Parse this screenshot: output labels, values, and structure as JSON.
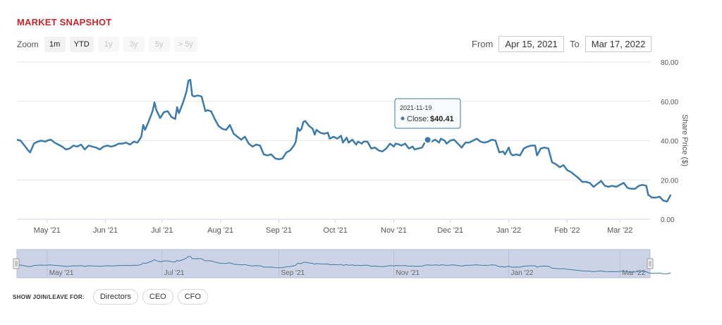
{
  "header": {
    "title": "MARKET SNAPSHOT"
  },
  "zoom": {
    "label": "Zoom",
    "buttons": [
      {
        "label": "1m",
        "enabled": true
      },
      {
        "label": "YTD",
        "enabled": true
      },
      {
        "label": "1y",
        "enabled": false
      },
      {
        "label": "3y",
        "enabled": false
      },
      {
        "label": "5y",
        "enabled": false
      },
      {
        "label": "> 5y",
        "enabled": false
      }
    ]
  },
  "range": {
    "from_label": "From",
    "from_value": "Apr 15, 2021",
    "to_label": "To",
    "to_value": "Mar 17, 2022"
  },
  "tooltip": {
    "date": "2021-11-19",
    "series": "Close:",
    "value": "$40.41"
  },
  "join": {
    "label": "SHOW JOIN/LEAVE FOR:",
    "buttons": [
      "Directors",
      "CEO",
      "CFO"
    ]
  },
  "colors": {
    "line": "#3d7aa5",
    "title": "#c1272d",
    "navigator_fill": "#ccd3e6"
  },
  "chart_data": {
    "type": "line",
    "ylabel": "Share Price ($)",
    "ylim": [
      0,
      80
    ],
    "yticks": [
      "0.00",
      "20.00",
      "40.00",
      "60.00",
      "80.00"
    ],
    "xlim": [
      "2021-04-15",
      "2022-03-17"
    ],
    "xticks": [
      {
        "date": "2021-05-01",
        "label": "May '21"
      },
      {
        "date": "2021-06-01",
        "label": "Jun '21"
      },
      {
        "date": "2021-07-01",
        "label": "Jul '21"
      },
      {
        "date": "2021-08-01",
        "label": "Aug '21"
      },
      {
        "date": "2021-09-01",
        "label": "Sep '21"
      },
      {
        "date": "2021-10-01",
        "label": "Oct '21"
      },
      {
        "date": "2021-11-01",
        "label": "Nov '21"
      },
      {
        "date": "2021-12-01",
        "label": "Dec '21"
      },
      {
        "date": "2022-01-01",
        "label": "Jan '22"
      },
      {
        "date": "2022-02-01",
        "label": "Feb '22"
      },
      {
        "date": "2022-03-01",
        "label": "Mar '22"
      }
    ],
    "navigator_ticks": [
      "May '21",
      "Jul '21",
      "Sep '21",
      "Nov '21",
      "Jan '22",
      "Mar '22"
    ],
    "grid": true,
    "highlight": {
      "date": "2021-11-19",
      "value": 40.41
    },
    "series": [
      {
        "points": [
          [
            "2021-04-15",
            40.5
          ],
          [
            "2021-04-17",
            40.0
          ],
          [
            "2021-04-19",
            37.5
          ],
          [
            "2021-04-21",
            35.0
          ],
          [
            "2021-04-22",
            34.0
          ],
          [
            "2021-04-24",
            38.5
          ],
          [
            "2021-04-26",
            39.5
          ],
          [
            "2021-04-28",
            40.0
          ],
          [
            "2021-04-30",
            39.5
          ],
          [
            "2021-05-01",
            40.0
          ],
          [
            "2021-05-03",
            40.5
          ],
          [
            "2021-05-05",
            39.0
          ],
          [
            "2021-05-07",
            38.0
          ],
          [
            "2021-05-09",
            37.0
          ],
          [
            "2021-05-11",
            35.5
          ],
          [
            "2021-05-13",
            36.0
          ],
          [
            "2021-05-15",
            37.5
          ],
          [
            "2021-05-17",
            37.0
          ],
          [
            "2021-05-19",
            38.0
          ],
          [
            "2021-05-21",
            35.5
          ],
          [
            "2021-05-23",
            37.5
          ],
          [
            "2021-05-25",
            37.0
          ],
          [
            "2021-05-27",
            36.5
          ],
          [
            "2021-05-29",
            35.5
          ],
          [
            "2021-05-31",
            37.0
          ],
          [
            "2021-06-02",
            37.5
          ],
          [
            "2021-06-04",
            37.0
          ],
          [
            "2021-06-06",
            37.5
          ],
          [
            "2021-06-08",
            38.5
          ],
          [
            "2021-06-10",
            38.5
          ],
          [
            "2021-06-12",
            39.0
          ],
          [
            "2021-06-14",
            38.0
          ],
          [
            "2021-06-16",
            39.5
          ],
          [
            "2021-06-18",
            39.0
          ],
          [
            "2021-06-20",
            42.0
          ],
          [
            "2021-06-21",
            48.0
          ],
          [
            "2021-06-22",
            45.5
          ],
          [
            "2021-06-24",
            50.0
          ],
          [
            "2021-06-26",
            55.0
          ],
          [
            "2021-06-27",
            59.5
          ],
          [
            "2021-06-28",
            55.5
          ],
          [
            "2021-06-30",
            51.5
          ],
          [
            "2021-07-02",
            54.5
          ],
          [
            "2021-07-04",
            55.0
          ],
          [
            "2021-07-06",
            52.0
          ],
          [
            "2021-07-08",
            51.0
          ],
          [
            "2021-07-09",
            57.0
          ],
          [
            "2021-07-10",
            54.0
          ],
          [
            "2021-07-12",
            59.0
          ],
          [
            "2021-07-13",
            62.0
          ],
          [
            "2021-07-14",
            65.0
          ],
          [
            "2021-07-15",
            70.5
          ],
          [
            "2021-07-16",
            71.0
          ],
          [
            "2021-07-17",
            63.0
          ],
          [
            "2021-07-18",
            62.5
          ],
          [
            "2021-07-20",
            63.0
          ],
          [
            "2021-07-22",
            62.5
          ],
          [
            "2021-07-24",
            55.0
          ],
          [
            "2021-07-25",
            55.5
          ],
          [
            "2021-07-27",
            55.0
          ],
          [
            "2021-07-29",
            51.0
          ],
          [
            "2021-07-31",
            47.5
          ],
          [
            "2021-08-02",
            46.0
          ],
          [
            "2021-08-04",
            45.5
          ],
          [
            "2021-08-06",
            48.0
          ],
          [
            "2021-08-08",
            43.5
          ],
          [
            "2021-08-10",
            42.0
          ],
          [
            "2021-08-12",
            40.5
          ],
          [
            "2021-08-14",
            42.0
          ],
          [
            "2021-08-16",
            38.5
          ],
          [
            "2021-08-18",
            37.0
          ],
          [
            "2021-08-20",
            38.0
          ],
          [
            "2021-08-22",
            37.5
          ],
          [
            "2021-08-24",
            33.0
          ],
          [
            "2021-08-26",
            32.5
          ],
          [
            "2021-08-28",
            33.0
          ],
          [
            "2021-08-30",
            31.0
          ],
          [
            "2021-09-01",
            30.5
          ],
          [
            "2021-09-03",
            31.0
          ],
          [
            "2021-09-05",
            34.0
          ],
          [
            "2021-09-07",
            35.0
          ],
          [
            "2021-09-09",
            37.5
          ],
          [
            "2021-09-10",
            39.5
          ],
          [
            "2021-09-11",
            46.5
          ],
          [
            "2021-09-12",
            45.0
          ],
          [
            "2021-09-13",
            46.0
          ],
          [
            "2021-09-14",
            49.5
          ],
          [
            "2021-09-15",
            50.0
          ],
          [
            "2021-09-17",
            47.5
          ],
          [
            "2021-09-19",
            46.0
          ],
          [
            "2021-09-20",
            43.0
          ],
          [
            "2021-09-21",
            45.5
          ],
          [
            "2021-09-23",
            44.0
          ],
          [
            "2021-09-25",
            43.5
          ],
          [
            "2021-09-27",
            44.0
          ],
          [
            "2021-09-28",
            41.0
          ],
          [
            "2021-09-30",
            42.0
          ],
          [
            "2021-10-02",
            41.0
          ],
          [
            "2021-10-04",
            42.5
          ],
          [
            "2021-10-05",
            39.0
          ],
          [
            "2021-10-07",
            41.5
          ],
          [
            "2021-10-08",
            39.0
          ],
          [
            "2021-10-10",
            40.5
          ],
          [
            "2021-10-12",
            38.0
          ],
          [
            "2021-10-13",
            39.5
          ],
          [
            "2021-10-15",
            38.5
          ],
          [
            "2021-10-16",
            39.5
          ],
          [
            "2021-10-18",
            39.5
          ],
          [
            "2021-10-20",
            36.0
          ],
          [
            "2021-10-22",
            36.5
          ],
          [
            "2021-10-24",
            35.0
          ],
          [
            "2021-10-26",
            34.5
          ],
          [
            "2021-10-28",
            36.0
          ],
          [
            "2021-10-30",
            38.5
          ],
          [
            "2021-11-01",
            37.0
          ],
          [
            "2021-11-02",
            38.5
          ],
          [
            "2021-11-04",
            38.0
          ],
          [
            "2021-11-05",
            37.5
          ],
          [
            "2021-11-07",
            38.5
          ],
          [
            "2021-11-09",
            36.0
          ],
          [
            "2021-11-11",
            37.0
          ],
          [
            "2021-11-12",
            35.5
          ],
          [
            "2021-11-14",
            36.0
          ],
          [
            "2021-11-16",
            36.5
          ],
          [
            "2021-11-18",
            40.0
          ],
          [
            "2021-11-19",
            40.41
          ],
          [
            "2021-11-21",
            39.5
          ],
          [
            "2021-11-23",
            40.5
          ],
          [
            "2021-11-25",
            39.0
          ],
          [
            "2021-11-26",
            41.0
          ],
          [
            "2021-11-28",
            40.0
          ],
          [
            "2021-11-29",
            38.5
          ],
          [
            "2021-12-01",
            40.0
          ],
          [
            "2021-12-03",
            40.5
          ],
          [
            "2021-12-05",
            38.5
          ],
          [
            "2021-12-07",
            36.5
          ],
          [
            "2021-12-09",
            39.0
          ],
          [
            "2021-12-11",
            39.0
          ],
          [
            "2021-12-13",
            40.0
          ],
          [
            "2021-12-15",
            41.0
          ],
          [
            "2021-12-17",
            39.5
          ],
          [
            "2021-12-19",
            39.0
          ],
          [
            "2021-12-21",
            39.5
          ],
          [
            "2021-12-23",
            40.5
          ],
          [
            "2021-12-25",
            40.0
          ],
          [
            "2021-12-27",
            34.0
          ],
          [
            "2021-12-29",
            34.5
          ],
          [
            "2021-12-30",
            33.0
          ],
          [
            "2022-01-01",
            36.5
          ],
          [
            "2022-01-02",
            33.5
          ],
          [
            "2022-01-03",
            32.5
          ],
          [
            "2022-01-05",
            33.0
          ],
          [
            "2022-01-07",
            32.5
          ],
          [
            "2022-01-09",
            36.0
          ],
          [
            "2022-01-11",
            37.0
          ],
          [
            "2022-01-13",
            37.5
          ],
          [
            "2022-01-15",
            37.5
          ],
          [
            "2022-01-16",
            32.5
          ],
          [
            "2022-01-18",
            36.0
          ],
          [
            "2022-01-20",
            36.5
          ],
          [
            "2022-01-22",
            36.0
          ],
          [
            "2022-01-24",
            29.0
          ],
          [
            "2022-01-26",
            28.0
          ],
          [
            "2022-01-28",
            26.5
          ],
          [
            "2022-01-30",
            27.5
          ],
          [
            "2022-02-01",
            25.0
          ],
          [
            "2022-02-03",
            24.0
          ],
          [
            "2022-02-05",
            22.5
          ],
          [
            "2022-02-07",
            21.0
          ],
          [
            "2022-02-09",
            19.0
          ],
          [
            "2022-02-11",
            19.0
          ],
          [
            "2022-02-13",
            18.5
          ],
          [
            "2022-02-15",
            16.5
          ],
          [
            "2022-02-17",
            18.0
          ],
          [
            "2022-02-19",
            19.5
          ],
          [
            "2022-02-21",
            17.0
          ],
          [
            "2022-02-23",
            16.5
          ],
          [
            "2022-02-25",
            17.0
          ],
          [
            "2022-02-27",
            16.5
          ],
          [
            "2022-03-01",
            17.5
          ],
          [
            "2022-03-03",
            18.5
          ],
          [
            "2022-03-05",
            16.0
          ],
          [
            "2022-03-07",
            15.5
          ],
          [
            "2022-03-09",
            15.5
          ],
          [
            "2022-03-11",
            17.0
          ],
          [
            "2022-03-13",
            17.5
          ],
          [
            "2022-03-15",
            17.0
          ],
          [
            "2022-03-16",
            12.5
          ],
          [
            "2022-03-18",
            11.0
          ],
          [
            "2022-03-20",
            11.0
          ],
          [
            "2022-03-22",
            11.5
          ],
          [
            "2022-03-24",
            9.5
          ],
          [
            "2022-03-26",
            9.0
          ],
          [
            "2022-03-28",
            12.5
          ]
        ]
      }
    ]
  }
}
